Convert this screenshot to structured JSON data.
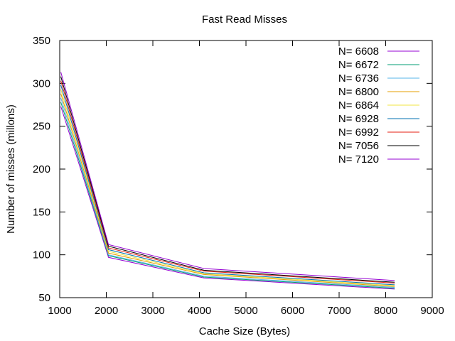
{
  "chart_data": {
    "type": "line",
    "title": "Fast Read Misses",
    "xlabel": "Cache Size (Bytes)",
    "ylabel": "Number of misses (millons)",
    "xlim": [
      1000,
      9000
    ],
    "ylim": [
      50,
      350
    ],
    "xticks": [
      "1000",
      "2000",
      "3000",
      "4000",
      "5000",
      "6000",
      "7000",
      "8000",
      "9000"
    ],
    "yticks": [
      "50",
      "100",
      "150",
      "200",
      "250",
      "300",
      "350"
    ],
    "xtick_values": [
      1000,
      2000,
      3000,
      4000,
      5000,
      6000,
      7000,
      8000,
      9000
    ],
    "ytick_values": [
      50,
      100,
      150,
      200,
      250,
      300,
      350
    ],
    "grid": false,
    "legend_position": "top-right",
    "x": [
      1024,
      2048,
      4096,
      8192
    ],
    "series": [
      {
        "name": "N= 6608",
        "color": "#9400d3",
        "values": [
          273,
          97,
          73,
          60
        ]
      },
      {
        "name": "N= 6672",
        "color": "#009e73",
        "values": [
          278,
          99,
          74,
          61
        ]
      },
      {
        "name": "N= 6736",
        "color": "#56b4e9",
        "values": [
          283,
          100,
          75,
          62
        ]
      },
      {
        "name": "N= 6800",
        "color": "#e69f00",
        "values": [
          288,
          102,
          77,
          63
        ]
      },
      {
        "name": "N= 6864",
        "color": "#f0e442",
        "values": [
          293,
          104,
          78,
          64
        ]
      },
      {
        "name": "N= 6928",
        "color": "#0072b2",
        "values": [
          298,
          106,
          79,
          65
        ]
      },
      {
        "name": "N= 6992",
        "color": "#e51e10",
        "values": [
          303,
          108,
          81,
          67
        ]
      },
      {
        "name": "N= 7056",
        "color": "#000000",
        "values": [
          308,
          110,
          82,
          68
        ]
      },
      {
        "name": "N= 7120",
        "color": "#9400d3",
        "values": [
          313,
          112,
          84,
          70
        ]
      }
    ]
  }
}
